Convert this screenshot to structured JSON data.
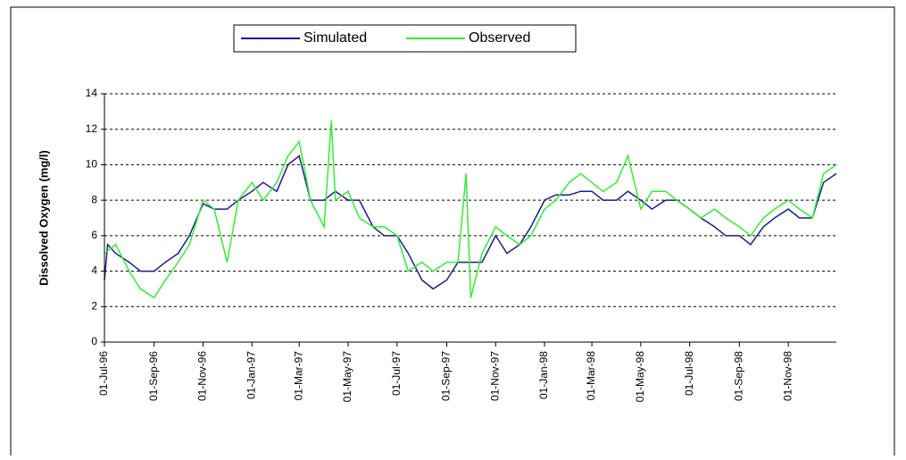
{
  "chart_data": {
    "type": "line",
    "ylabel": "Dissolved Oxygen (mg/l)",
    "ylim": [
      0,
      14
    ],
    "yticks": [
      0,
      2,
      4,
      6,
      8,
      10,
      12,
      14
    ],
    "grid": true,
    "xlim": [
      "1996-07-01",
      "1998-12-31"
    ],
    "xticks": [
      {
        "value": "1996-07-01",
        "label": "01-Jul-96"
      },
      {
        "value": "1996-09-01",
        "label": "01-Sep-96"
      },
      {
        "value": "1996-11-01",
        "label": "01-Nov-96"
      },
      {
        "value": "1997-01-01",
        "label": "01-Jan-97"
      },
      {
        "value": "1997-03-01",
        "label": "01-Mar-97"
      },
      {
        "value": "1997-05-01",
        "label": "01-May-97"
      },
      {
        "value": "1997-07-01",
        "label": "01-Jul-97"
      },
      {
        "value": "1997-09-01",
        "label": "01-Sep-97"
      },
      {
        "value": "1997-11-01",
        "label": "01-Nov-97"
      },
      {
        "value": "1998-01-01",
        "label": "01-Jan-98"
      },
      {
        "value": "1998-03-01",
        "label": "01-Mar-98"
      },
      {
        "value": "1998-05-01",
        "label": "01-May-98"
      },
      {
        "value": "1998-07-01",
        "label": "01-Jul-98"
      },
      {
        "value": "1998-09-01",
        "label": "01-Sep-98"
      },
      {
        "value": "1998-11-01",
        "label": "01-Nov-98"
      }
    ],
    "legend": "top",
    "series": [
      {
        "name": "Simulated",
        "color": "#1c1c8c",
        "x": [
          "1996-07-01",
          "1996-07-05",
          "1996-07-15",
          "1996-08-01",
          "1996-08-15",
          "1996-09-01",
          "1996-09-15",
          "1996-10-01",
          "1996-10-15",
          "1996-11-01",
          "1996-11-15",
          "1996-12-01",
          "1996-12-15",
          "1997-01-01",
          "1997-01-15",
          "1997-02-01",
          "1997-02-15",
          "1997-03-01",
          "1997-03-15",
          "1997-04-01",
          "1997-04-15",
          "1997-05-01",
          "1997-05-15",
          "1997-06-01",
          "1997-06-15",
          "1997-07-01",
          "1997-07-15",
          "1997-08-01",
          "1997-08-15",
          "1997-09-01",
          "1997-09-15",
          "1997-10-01",
          "1997-10-15",
          "1997-11-01",
          "1997-11-15",
          "1997-12-01",
          "1997-12-15",
          "1998-01-01",
          "1998-01-15",
          "1998-02-01",
          "1998-02-15",
          "1998-03-01",
          "1998-03-15",
          "1998-04-01",
          "1998-04-15",
          "1998-05-01",
          "1998-05-15",
          "1998-06-01",
          "1998-06-15",
          "1998-07-01",
          "1998-07-15",
          "1998-08-01",
          "1998-08-15",
          "1998-09-01",
          "1998-09-15",
          "1998-10-01",
          "1998-10-15",
          "1998-11-01",
          "1998-11-15",
          "1998-12-01",
          "1998-12-15",
          "1998-12-31"
        ],
        "values": [
          3.5,
          5.5,
          5,
          4.5,
          4,
          4,
          4.5,
          5,
          6,
          7.8,
          7.5,
          7.5,
          8,
          8.5,
          9,
          8.5,
          10,
          10.5,
          8,
          8,
          8.5,
          8,
          8,
          6.5,
          6,
          6,
          5,
          3.5,
          3,
          3.5,
          4.5,
          4.5,
          4.5,
          6,
          5,
          5.5,
          6.5,
          8,
          8.3,
          8.3,
          8.5,
          8.5,
          8,
          8,
          8.5,
          8,
          7.5,
          8,
          8,
          7.5,
          7,
          6.5,
          6,
          6,
          5.5,
          6.5,
          7,
          7.5,
          7,
          7,
          9,
          9.5
        ]
      },
      {
        "name": "Observed",
        "color": "#33ee33",
        "x": [
          "1996-07-01",
          "1996-07-15",
          "1996-08-01",
          "1996-08-15",
          "1996-09-01",
          "1996-09-15",
          "1996-10-01",
          "1996-10-15",
          "1996-11-01",
          "1996-11-15",
          "1996-12-01",
          "1996-12-15",
          "1997-01-01",
          "1997-01-15",
          "1997-02-01",
          "1997-02-15",
          "1997-03-01",
          "1997-03-15",
          "1997-04-01",
          "1997-04-10",
          "1997-04-15",
          "1997-05-01",
          "1997-05-15",
          "1997-06-01",
          "1997-06-15",
          "1997-07-01",
          "1997-07-15",
          "1997-08-01",
          "1997-08-15",
          "1997-09-01",
          "1997-09-15",
          "1997-09-25",
          "1997-10-01",
          "1997-10-15",
          "1997-11-01",
          "1997-11-15",
          "1997-12-01",
          "1997-12-15",
          "1998-01-01",
          "1998-01-15",
          "1998-02-01",
          "1998-02-15",
          "1998-03-01",
          "1998-03-15",
          "1998-04-01",
          "1998-04-15",
          "1998-05-01",
          "1998-05-15",
          "1998-06-01",
          "1998-06-15",
          "1998-07-01",
          "1998-07-15",
          "1998-08-01",
          "1998-08-15",
          "1998-09-01",
          "1998-09-15",
          "1998-10-01",
          "1998-10-15",
          "1998-11-01",
          "1998-11-15",
          "1998-12-01",
          "1998-12-15",
          "1998-12-31"
        ],
        "values": [
          5,
          5.5,
          4,
          3,
          2.5,
          3.5,
          4.5,
          5.5,
          8,
          7.5,
          4.5,
          8,
          9,
          8,
          9,
          10.5,
          11.3,
          8,
          6.5,
          12.5,
          8,
          8.5,
          7,
          6.5,
          6.5,
          6,
          4,
          4.5,
          4,
          4.5,
          4.5,
          9.5,
          2.5,
          5,
          6.5,
          6,
          5.5,
          6,
          7.5,
          8,
          9,
          9.5,
          9,
          8.5,
          9,
          10.5,
          7.5,
          8.5,
          8.5,
          8,
          7.5,
          7,
          7.5,
          7,
          6.5,
          6,
          7,
          7.5,
          8,
          7.5,
          7,
          9.5,
          10
        ]
      }
    ]
  }
}
